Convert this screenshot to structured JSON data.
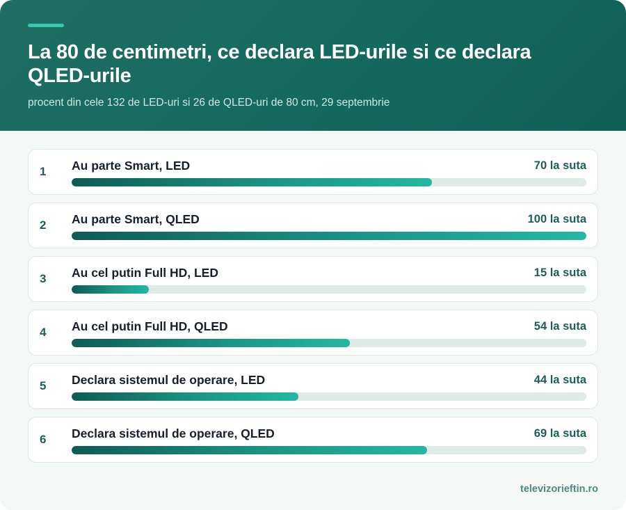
{
  "header": {
    "title": "La 80 de centimetri, ce declara LED-urile si ce declara QLED-urile",
    "subtitle": "procent din cele 132 de LED-uri si 26 de QLED-uri de 80 cm, 29 septembrie"
  },
  "chart_data": {
    "type": "bar",
    "orientation": "horizontal",
    "unit_suffix": "la suta",
    "xlim": [
      0,
      100
    ],
    "items": [
      {
        "rank": "1",
        "label": "Au parte Smart, LED",
        "value": 70,
        "value_text": "70 la suta"
      },
      {
        "rank": "2",
        "label": "Au parte Smart, QLED",
        "value": 100,
        "value_text": "100 la suta"
      },
      {
        "rank": "3",
        "label": "Au cel putin Full HD, LED",
        "value": 15,
        "value_text": "15 la suta"
      },
      {
        "rank": "4",
        "label": "Au cel putin Full HD, QLED",
        "value": 54,
        "value_text": "54 la suta"
      },
      {
        "rank": "5",
        "label": "Declara sistemul de operare, LED",
        "value": 44,
        "value_text": "44 la suta"
      },
      {
        "rank": "6",
        "label": "Declara sistemul de operare, QLED",
        "value": 69,
        "value_text": "69 la suta"
      }
    ]
  },
  "footer": {
    "source": "televizorieftin.ro"
  },
  "colors": {
    "header_bg": "#146a5e",
    "accent": "#37c7b2",
    "bar_start": "#0f5c52",
    "bar_end": "#22b8a3",
    "track": "#dfe9e6"
  }
}
